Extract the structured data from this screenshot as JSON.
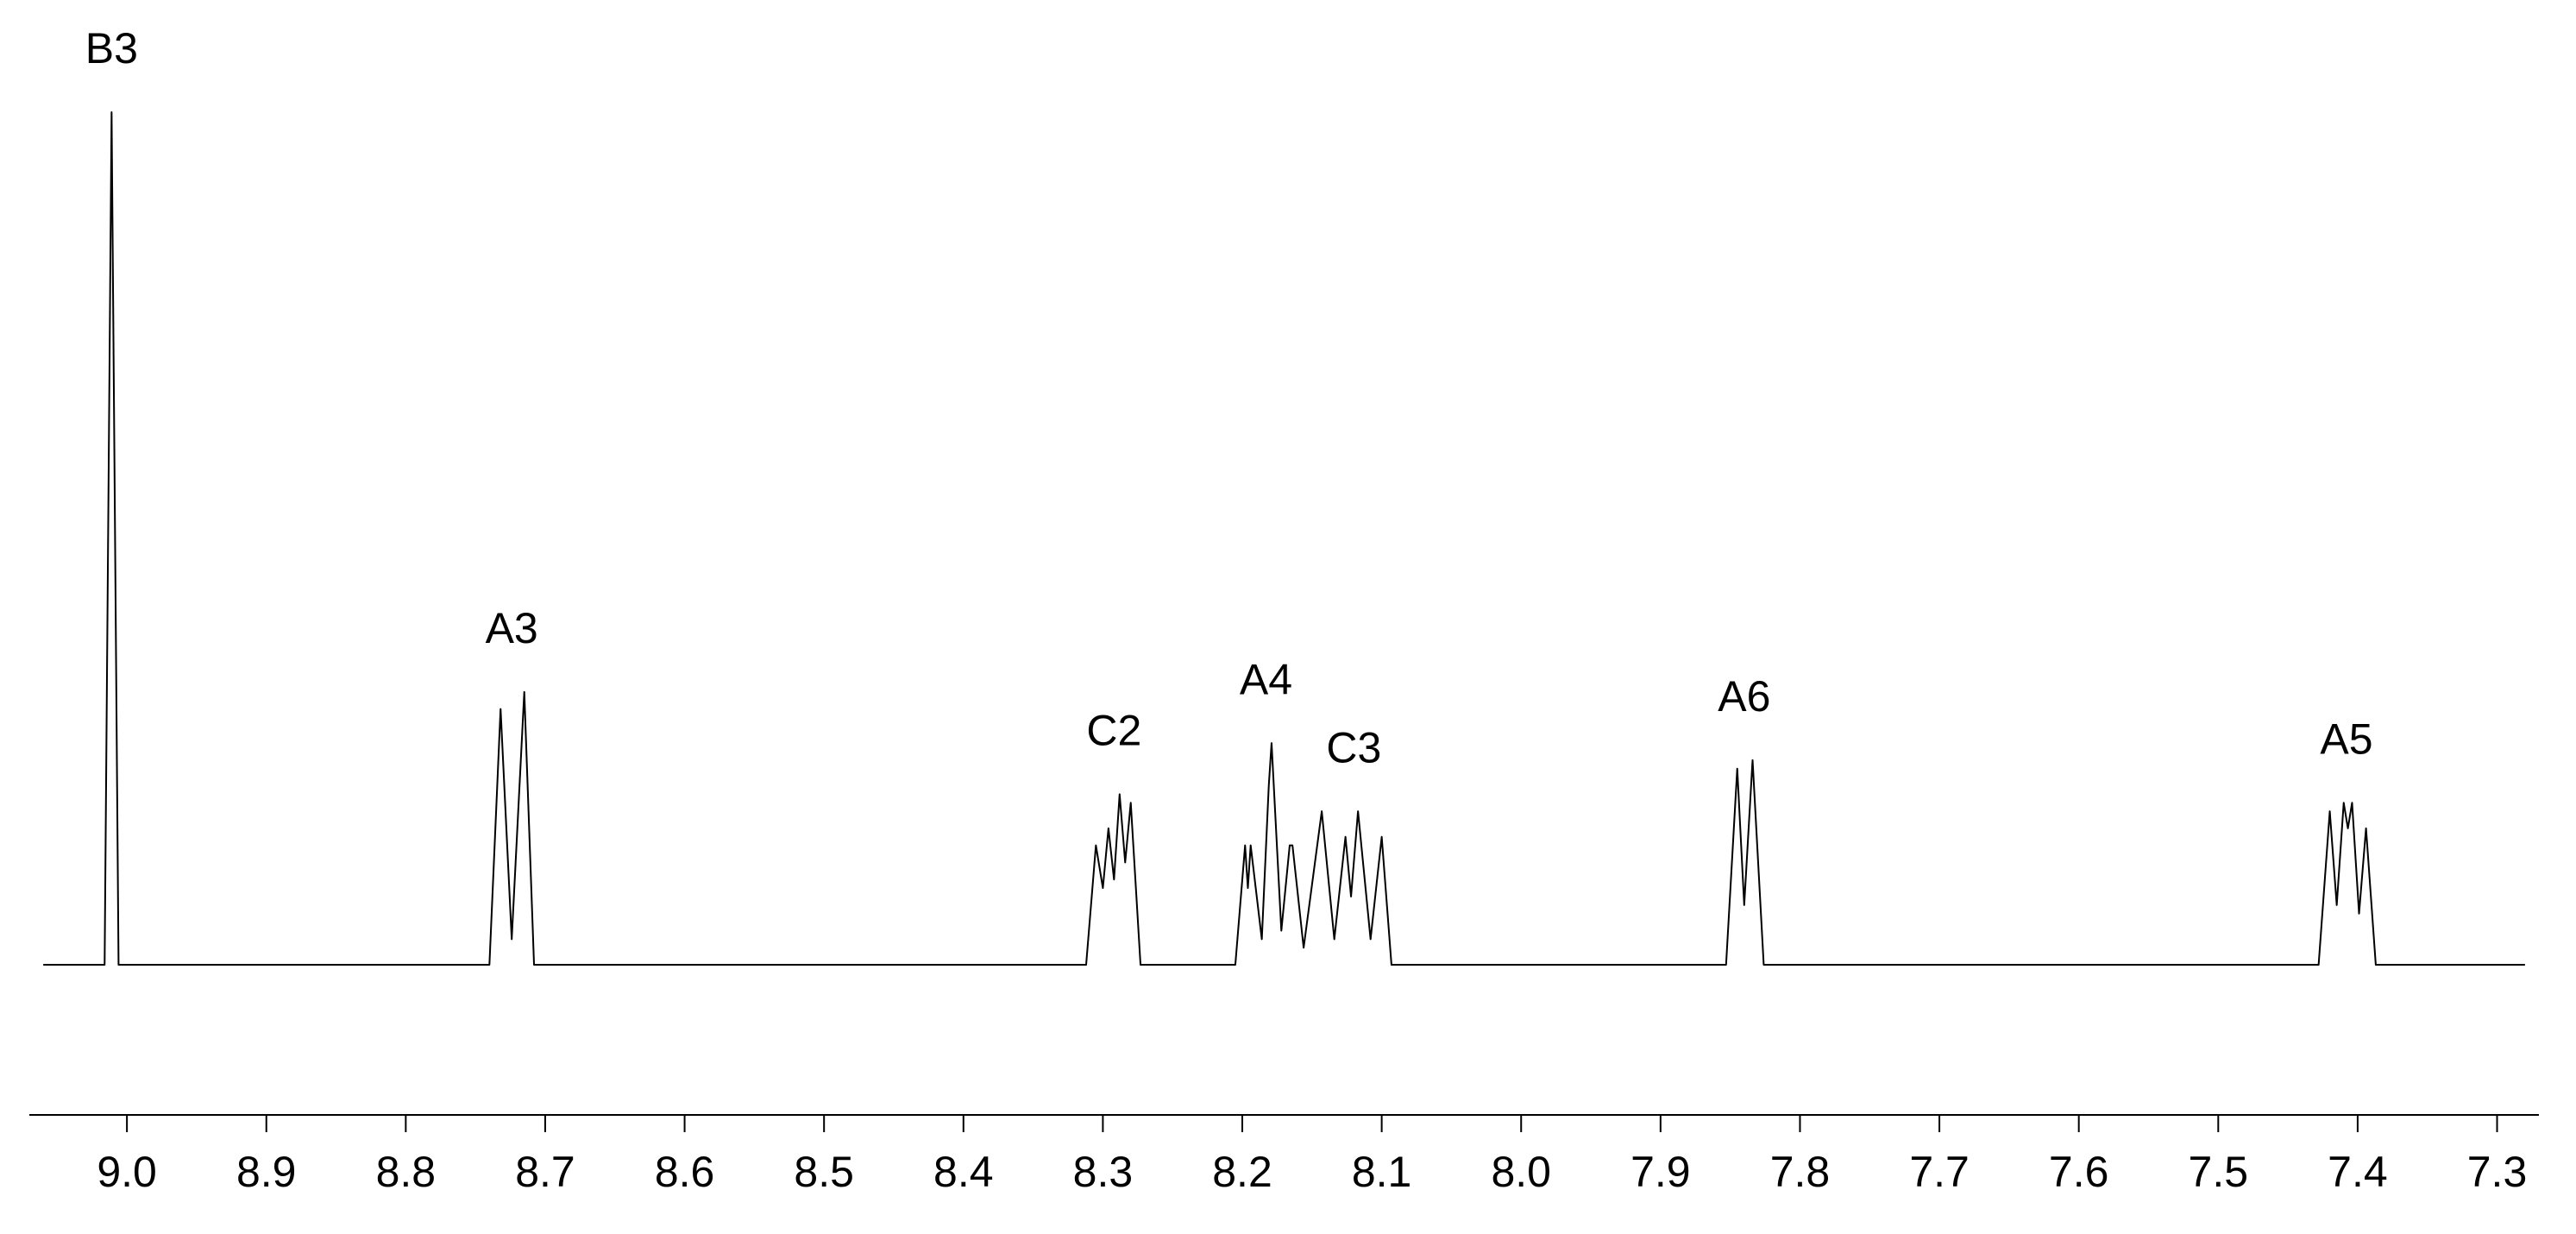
{
  "chart_data": {
    "type": "line",
    "color": "#000000",
    "x": [
      9.06,
      9.016,
      9.011,
      9.006,
      8.74,
      8.732,
      8.724,
      8.715,
      8.708,
      8.312,
      8.305,
      8.3,
      8.296,
      8.292,
      8.288,
      8.284,
      8.28,
      8.273,
      8.205,
      8.198,
      8.196,
      8.194,
      8.186,
      8.181,
      8.179,
      8.172,
      8.166,
      8.164,
      8.156,
      8.143,
      8.134,
      8.126,
      8.122,
      8.117,
      8.108,
      8.1,
      8.093,
      7.853,
      7.845,
      7.84,
      7.834,
      7.826,
      7.428,
      7.42,
      7.415,
      7.41,
      7.407,
      7.404,
      7.399,
      7.394,
      7.387,
      7.28
    ],
    "values": [
      0,
      0,
      100,
      0,
      0,
      30,
      3,
      32,
      0,
      0,
      14,
      9,
      16,
      10,
      20,
      12,
      19,
      0,
      0,
      14,
      9,
      14,
      3,
      21,
      26,
      4,
      14,
      14,
      2,
      18,
      3,
      15,
      8,
      18,
      3,
      15,
      0,
      0,
      23,
      7,
      24,
      0,
      0,
      18,
      7,
      19,
      16,
      19,
      6,
      16,
      0,
      0
    ],
    "xlim": [
      9.07,
      7.27
    ],
    "ylim": [
      0,
      100
    ],
    "xticks": [
      {
        "value": 9.0,
        "label": "9.0"
      },
      8.9,
      8.8,
      8.7,
      8.6,
      8.5,
      8.4,
      8.3,
      8.2,
      8.1,
      {
        "value": 8.0,
        "label": "8.0"
      },
      7.9,
      7.8,
      7.7,
      7.6,
      7.5,
      7.4,
      7.3
    ],
    "annotations": [
      {
        "text": "B3",
        "x": 9.011
      },
      {
        "text": "A3",
        "x": 8.724
      },
      {
        "text": "C2",
        "x": 8.292
      },
      {
        "text": "A4",
        "x": 8.183
      },
      {
        "text": "C3",
        "x": 8.12
      },
      {
        "text": "A6",
        "x": 7.84
      },
      {
        "text": "A5",
        "x": 7.408
      }
    ]
  }
}
